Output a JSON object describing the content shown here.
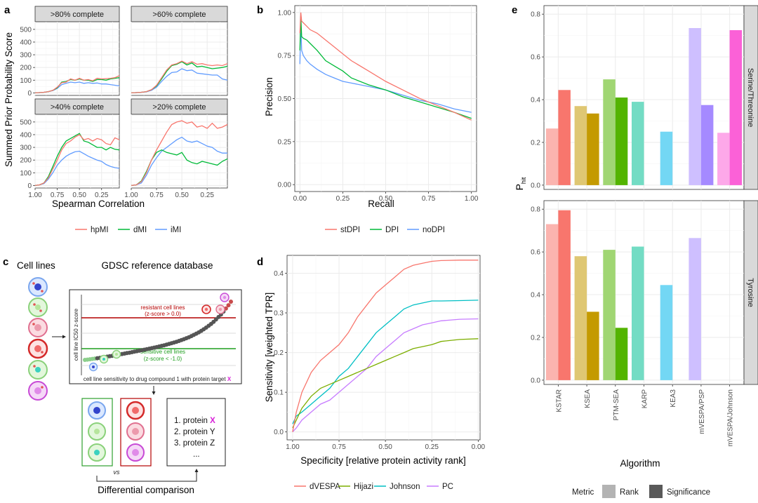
{
  "panel_letters": {
    "a": "a",
    "b": "b",
    "c": "c",
    "d": "d",
    "e": "e"
  },
  "chart_data": [
    {
      "id": "a",
      "type": "line",
      "facet": true,
      "xlabel": "Spearman Correlation",
      "ylabel": "Summed Prior Probability Score",
      "xlim": [
        1.0,
        0.05
      ],
      "x_ticks": [
        1.0,
        0.75,
        0.5,
        0.25
      ],
      "x_tick_labels": [
        "1.00",
        "0.75",
        "0.50",
        "0.25"
      ],
      "ylim": [
        -20,
        560
      ],
      "y_ticks": [
        0,
        100,
        200,
        300,
        400,
        500
      ],
      "x": [
        1.0,
        0.95,
        0.9,
        0.85,
        0.8,
        0.75,
        0.7,
        0.65,
        0.6,
        0.55,
        0.5,
        0.45,
        0.4,
        0.35,
        0.3,
        0.25,
        0.2,
        0.15,
        0.1,
        0.05
      ],
      "colors": {
        "hpMI": "#F8766D",
        "dMI": "#00BA38",
        "iMI": "#619CFF"
      },
      "legend": [
        "hpMI",
        "dMI",
        "iMI"
      ],
      "facets": [
        {
          "label": ">80% complete",
          "series": [
            {
              "name": "hpMI",
              "values": [
                0,
                2,
                5,
                10,
                20,
                45,
                80,
                85,
                110,
                100,
                115,
                100,
                105,
                95,
                115,
                110,
                112,
                115,
                120,
                135
              ]
            },
            {
              "name": "dMI",
              "values": [
                0,
                2,
                5,
                10,
                20,
                40,
                85,
                90,
                105,
                100,
                110,
                100,
                100,
                90,
                105,
                105,
                100,
                110,
                115,
                120
              ]
            },
            {
              "name": "iMI",
              "values": [
                0,
                2,
                5,
                10,
                18,
                35,
                65,
                75,
                85,
                80,
                85,
                75,
                80,
                75,
                78,
                70,
                70,
                65,
                60,
                55
              ]
            }
          ]
        },
        {
          "label": ">60% complete",
          "series": [
            {
              "name": "hpMI",
              "values": [
                0,
                2,
                5,
                10,
                25,
                60,
                120,
                180,
                220,
                230,
                250,
                230,
                245,
                225,
                230,
                220,
                215,
                220,
                215,
                230
              ]
            },
            {
              "name": "dMI",
              "values": [
                0,
                2,
                5,
                10,
                25,
                55,
                110,
                170,
                215,
                225,
                245,
                220,
                235,
                205,
                210,
                200,
                190,
                195,
                200,
                210
              ]
            },
            {
              "name": "iMI",
              "values": [
                0,
                2,
                5,
                8,
                20,
                45,
                90,
                130,
                160,
                165,
                190,
                175,
                180,
                155,
                150,
                145,
                140,
                140,
                110,
                100
              ]
            }
          ]
        },
        {
          "label": ">40% complete",
          "series": [
            {
              "name": "hpMI",
              "values": [
                0,
                5,
                20,
                60,
                130,
                200,
                280,
                330,
                350,
                380,
                400,
                360,
                370,
                350,
                370,
                360,
                330,
                320,
                375,
                360
              ]
            },
            {
              "name": "dMI",
              "values": [
                0,
                5,
                20,
                70,
                150,
                230,
                300,
                350,
                370,
                390,
                410,
                350,
                340,
                320,
                300,
                300,
                280,
                300,
                285,
                280
              ]
            },
            {
              "name": "iMI",
              "values": [
                0,
                5,
                15,
                50,
                100,
                160,
                200,
                230,
                250,
                265,
                270,
                250,
                230,
                215,
                200,
                190,
                165,
                150,
                140,
                135
              ]
            }
          ]
        },
        {
          "label": ">20% complete",
          "series": [
            {
              "name": "hpMI",
              "values": [
                0,
                5,
                30,
                100,
                200,
                280,
                350,
                420,
                480,
                500,
                510,
                490,
                500,
                460,
                470,
                450,
                490,
                450,
                460,
                480
              ]
            },
            {
              "name": "dMI",
              "values": [
                0,
                5,
                35,
                110,
                200,
                260,
                280,
                260,
                250,
                240,
                260,
                200,
                180,
                170,
                190,
                180,
                170,
                160,
                190,
                210
              ]
            },
            {
              "name": "iMI",
              "values": [
                0,
                5,
                20,
                80,
                160,
                220,
                270,
                300,
                330,
                360,
                380,
                350,
                340,
                350,
                330,
                310,
                300,
                270,
                255,
                255
              ]
            }
          ]
        }
      ]
    },
    {
      "id": "b",
      "type": "line",
      "xlabel": "Recall",
      "ylabel": "Precision",
      "xlim": [
        -0.03,
        1.03
      ],
      "ylim": [
        -0.04,
        1.04
      ],
      "x_ticks": [
        0,
        0.25,
        0.5,
        0.75,
        1.0
      ],
      "x_tick_labels": [
        "0.00",
        "0.25",
        "0.50",
        "0.75",
        "1.00"
      ],
      "y_ticks": [
        0,
        0.25,
        0.5,
        0.75,
        1.0
      ],
      "y_tick_labels": [
        "0.00",
        "0.25",
        "0.50",
        "0.75",
        "1.00"
      ],
      "x": [
        0.0,
        0.005,
        0.01,
        0.02,
        0.04,
        0.06,
        0.1,
        0.15,
        0.2,
        0.25,
        0.3,
        0.4,
        0.5,
        0.6,
        0.7,
        0.8,
        0.9,
        1.0
      ],
      "series": [
        {
          "name": "stDPI",
          "color": "#F8766D",
          "values": [
            0.88,
            1.0,
            0.95,
            0.94,
            0.92,
            0.9,
            0.88,
            0.84,
            0.8,
            0.76,
            0.72,
            0.66,
            0.6,
            0.55,
            0.5,
            0.46,
            0.42,
            0.375
          ]
        },
        {
          "name": "DPI",
          "color": "#00BA38",
          "values": [
            0.78,
            0.98,
            0.86,
            0.85,
            0.84,
            0.82,
            0.78,
            0.72,
            0.69,
            0.66,
            0.62,
            0.58,
            0.55,
            0.51,
            0.48,
            0.45,
            0.42,
            0.385
          ]
        },
        {
          "name": "noDPI",
          "color": "#619CFF",
          "values": [
            0.7,
            0.94,
            0.78,
            0.75,
            0.72,
            0.7,
            0.67,
            0.64,
            0.62,
            0.6,
            0.59,
            0.57,
            0.55,
            0.52,
            0.49,
            0.47,
            0.44,
            0.42
          ]
        }
      ],
      "legend": [
        "stDPI",
        "DPI",
        "noDPI"
      ]
    },
    {
      "id": "d",
      "type": "line",
      "xlabel": "Specificity [relative protein activity rank]",
      "ylabel": "Sensitivity [weighted TPR]",
      "xlim": [
        1.03,
        -0.01
      ],
      "ylim": [
        -0.02,
        0.445
      ],
      "x_ticks": [
        1.0,
        0.75,
        0.5,
        0.25,
        0.0
      ],
      "x_tick_labels": [
        "1.00",
        "0.75",
        "0.50",
        "0.25",
        "0.00"
      ],
      "y_ticks": [
        0.0,
        0.1,
        0.2,
        0.3,
        0.4
      ],
      "y_tick_labels": [
        "0.0",
        "0.1",
        "0.2",
        "0.3",
        "0.4"
      ],
      "x": [
        1.0,
        0.98,
        0.95,
        0.9,
        0.85,
        0.8,
        0.75,
        0.7,
        0.65,
        0.6,
        0.55,
        0.5,
        0.45,
        0.4,
        0.35,
        0.3,
        0.25,
        0.2,
        0.1,
        0.0
      ],
      "series": [
        {
          "name": "dVESPA",
          "color": "#F8766D",
          "values": [
            0.0,
            0.05,
            0.1,
            0.15,
            0.18,
            0.2,
            0.22,
            0.25,
            0.29,
            0.32,
            0.35,
            0.37,
            0.39,
            0.41,
            0.42,
            0.425,
            0.43,
            0.432,
            0.433,
            0.433
          ]
        },
        {
          "name": "Hijazi",
          "color": "#7CAE00",
          "values": [
            0.01,
            0.03,
            0.06,
            0.09,
            0.11,
            0.12,
            0.13,
            0.14,
            0.15,
            0.16,
            0.17,
            0.18,
            0.19,
            0.2,
            0.21,
            0.215,
            0.22,
            0.228,
            0.233,
            0.235
          ]
        },
        {
          "name": "Johnson",
          "color": "#00BFC4",
          "values": [
            0.02,
            0.04,
            0.05,
            0.07,
            0.09,
            0.11,
            0.14,
            0.16,
            0.19,
            0.22,
            0.25,
            0.27,
            0.29,
            0.31,
            0.32,
            0.325,
            0.33,
            0.33,
            0.331,
            0.332
          ]
        },
        {
          "name": "PC",
          "color": "#C77CFF",
          "values": [
            0.0,
            0.01,
            0.03,
            0.05,
            0.07,
            0.08,
            0.1,
            0.12,
            0.14,
            0.16,
            0.19,
            0.21,
            0.23,
            0.25,
            0.26,
            0.27,
            0.275,
            0.28,
            0.284,
            0.285
          ]
        }
      ],
      "legend": [
        "dVESPA",
        "Hijazi",
        "Johnson",
        "PC"
      ]
    },
    {
      "id": "e",
      "type": "bar",
      "xlabel": "Algorithm",
      "ylabel": "P",
      "ylabel_sub": "hit",
      "categories": [
        "KSTAR",
        "KSEA",
        "PTM-SEA",
        "KARP",
        "KEA3",
        "mVESPA/PSP",
        "mVESPA/Johnson"
      ],
      "category_colors": [
        "#F8766D",
        "#C49A00",
        "#53B400",
        "#00C094",
        "#00B6EB",
        "#A58AFF",
        "#FB61D7"
      ],
      "ylim": [
        -0.02,
        0.84
      ],
      "y_ticks": [
        0.0,
        0.2,
        0.4,
        0.6,
        0.8
      ],
      "y_tick_labels": [
        "0.0",
        "0.2",
        "0.4",
        "0.6",
        "0.8"
      ],
      "facets": [
        {
          "label": "Serine/Threonine",
          "rank": [
            0.265,
            0.37,
            0.495,
            0.39,
            0.25,
            0.735,
            0.245
          ],
          "significance": [
            0.445,
            0.335,
            0.41,
            null,
            null,
            0.375,
            0.725
          ]
        },
        {
          "label": "Tyrosine",
          "rank": [
            0.73,
            0.58,
            0.61,
            0.625,
            0.445,
            0.665,
            null
          ],
          "significance": [
            0.795,
            0.32,
            0.245,
            null,
            null,
            null,
            null
          ]
        }
      ],
      "legend_title": "Metric",
      "legend": [
        "Rank",
        "Significance"
      ]
    }
  ],
  "diagram_c": {
    "cell_lines_title": "Cell lines",
    "database_title": "GDSC reference database",
    "resistant_label": "resistant cell lines",
    "resistant_sub": "(z-score > 0.0)",
    "sensitive_label": "sensitive cell lines",
    "sensitive_sub": "(z-score < -1.0)",
    "yaxis_label": "cell line IC50 z-score",
    "caption_prefix": "cell line sensitivity to drug compound 1 with protein target",
    "caption_target": "X",
    "list_items": [
      "1. protein",
      "2. protein Y",
      "3. protein Z",
      "..."
    ],
    "list_target": "X",
    "vs": "vs",
    "comparison": "Differential comparison"
  }
}
